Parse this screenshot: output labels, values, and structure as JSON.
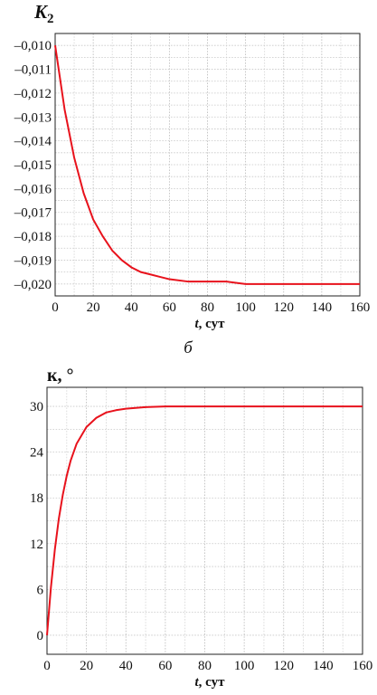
{
  "panel_label": "б",
  "chart_data": [
    {
      "type": "line",
      "ylabel_main": "K",
      "ylabel_sub": "2",
      "xlabel_italic": "t",
      "xlabel_rest": ", сут",
      "xlim": [
        0,
        160
      ],
      "ylim": [
        -0.0205,
        -0.0095
      ],
      "xticks": [
        0,
        20,
        40,
        60,
        80,
        100,
        120,
        140,
        160
      ],
      "xtick_labels": [
        "0",
        "20",
        "40",
        "60",
        "80",
        "100",
        "120",
        "140",
        "160"
      ],
      "yticks": [
        -0.01,
        -0.011,
        -0.012,
        -0.013,
        -0.014,
        -0.015,
        -0.016,
        -0.017,
        -0.018,
        -0.019,
        -0.02
      ],
      "ytick_labels": [
        "–0,010",
        "–0,011",
        "–0,012",
        "–0,013",
        "–0,014",
        "–0,015",
        "–0,016",
        "–0,017",
        "–0,018",
        "–0,019",
        "–0,020"
      ],
      "grid": true,
      "color": "#e8121c",
      "x": [
        0,
        5,
        10,
        15,
        20,
        25,
        30,
        35,
        40,
        45,
        50,
        55,
        60,
        70,
        80,
        90,
        100,
        110,
        120,
        130,
        140,
        150,
        160
      ],
      "y": [
        -0.01,
        -0.0127,
        -0.0147,
        -0.0162,
        -0.0173,
        -0.018,
        -0.0186,
        -0.019,
        -0.0193,
        -0.0195,
        -0.0196,
        -0.0197,
        -0.0198,
        -0.0199,
        -0.0199,
        -0.0199,
        -0.02,
        -0.02,
        -0.02,
        -0.02,
        -0.02,
        -0.02,
        -0.02
      ]
    },
    {
      "type": "line",
      "ylabel_main": "к, °",
      "xlabel_italic": "t",
      "xlabel_rest": ", сут",
      "xlim": [
        0,
        160
      ],
      "ylim": [
        -2.5,
        32.5
      ],
      "xticks": [
        0,
        20,
        40,
        60,
        80,
        100,
        120,
        140,
        160
      ],
      "xtick_labels": [
        "0",
        "20",
        "40",
        "60",
        "80",
        "100",
        "120",
        "140",
        "160"
      ],
      "yticks": [
        0,
        6,
        12,
        18,
        24,
        30
      ],
      "ytick_labels": [
        "0",
        "6",
        "12",
        "18",
        "24",
        "30"
      ],
      "grid": true,
      "color": "#e8121c",
      "x": [
        0,
        2,
        4,
        6,
        8,
        10,
        12,
        15,
        20,
        25,
        30,
        35,
        40,
        50,
        60,
        70,
        80,
        100,
        120,
        140,
        160
      ],
      "y": [
        0,
        6.3,
        11.3,
        15.3,
        18.4,
        20.9,
        22.9,
        25.1,
        27.3,
        28.5,
        29.2,
        29.5,
        29.7,
        29.9,
        30.0,
        30.0,
        30.0,
        30.0,
        30.0,
        30.0,
        30.0
      ]
    }
  ]
}
